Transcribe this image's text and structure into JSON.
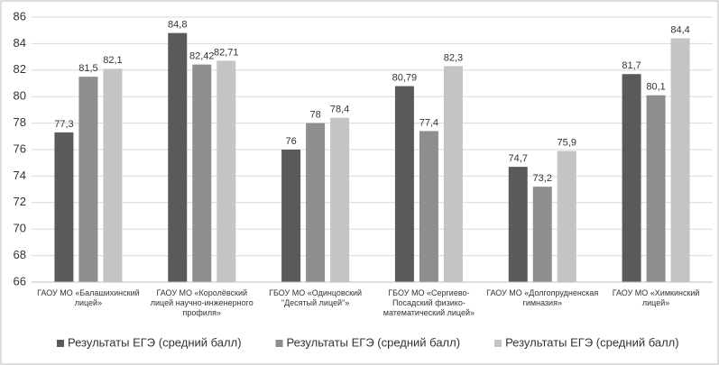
{
  "chart_data": {
    "type": "bar",
    "categories": [
      "ГАОУ МО «Балашихинский лицей»",
      "ГАОУ МО «Королёвский лицей научно-инженерного профиля»",
      "ГБОУ МО «Одинцовский \"Десятый лицей\"»",
      "ГБОУ МО «Сергиево-Посадский физико-математический лицей»",
      "ГАОУ МО «Долгопрудненская гимназия»",
      "ГАОУ МО «Химкинский лицей»"
    ],
    "series": [
      {
        "name": "Результаты ЕГЭ (средний балл)",
        "color": "#5a5a5a",
        "values": [
          77.3,
          84.8,
          76,
          80.79,
          74.7,
          81.7
        ],
        "value_labels": [
          "77,3",
          "84,8",
          "76",
          "80,79",
          "74,7",
          "81,7"
        ]
      },
      {
        "name": "Результаты ЕГЭ (средний балл)",
        "color": "#8e8e8e",
        "values": [
          81.5,
          82.42,
          78,
          77.4,
          73.2,
          80.1
        ],
        "value_labels": [
          "81,5",
          "82,42",
          "78",
          "77,4",
          "73,2",
          "80,1"
        ]
      },
      {
        "name": "Результаты ЕГЭ (средний балл)",
        "color": "#c4c4c4",
        "values": [
          82.1,
          82.71,
          78.4,
          82.3,
          75.9,
          84.4
        ],
        "value_labels": [
          "82,1",
          "82,71",
          "78,4",
          "82,3",
          "75,9",
          "84,4"
        ]
      }
    ],
    "ylim": [
      66,
      86
    ],
    "yticks": [
      66,
      68,
      70,
      72,
      74,
      76,
      78,
      80,
      82,
      84,
      86
    ],
    "grid": true,
    "legend": "bottom"
  }
}
